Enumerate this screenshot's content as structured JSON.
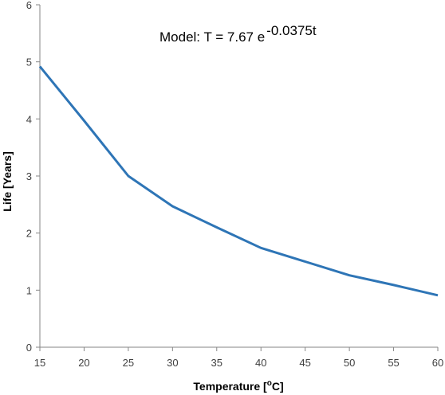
{
  "chart_data": {
    "type": "line",
    "xlabel": "Temperature [",
    "xlabel_sup": "o",
    "xlabel_tail": "C]",
    "ylabel": "Life [Years]",
    "xlim": [
      15,
      60
    ],
    "ylim": [
      0,
      6
    ],
    "xticks": [
      "15",
      "20",
      "25",
      "30",
      "35",
      "40",
      "45",
      "50",
      "55",
      "60"
    ],
    "yticks": [
      "0",
      "1",
      "2",
      "3",
      "4",
      "5",
      "6"
    ],
    "grid": false,
    "series": [
      {
        "color": "#2E75B6",
        "x": [
          15,
          20,
          25,
          30,
          35,
          40,
          45,
          50,
          55,
          60
        ],
        "y": [
          4.92,
          3.97,
          3.0,
          2.47,
          2.1,
          1.74,
          1.5,
          1.26,
          1.09,
          0.91
        ]
      }
    ],
    "annotation": {
      "prefix": "Model:  T = 7.67 e",
      "exponent": "-0.0375t"
    }
  }
}
